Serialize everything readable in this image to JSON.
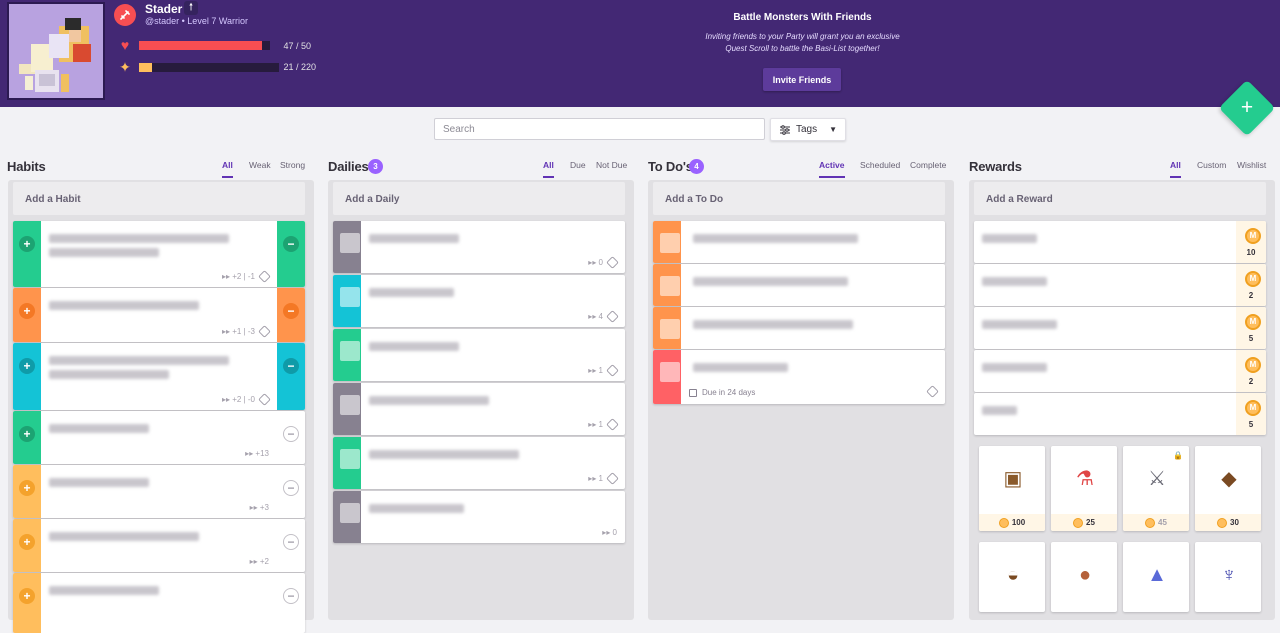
{
  "colors": {
    "header": "#432874",
    "accent": "#6133b4",
    "green": "#24cc8f",
    "health": "#f74e52",
    "experience": "#ffbe5d",
    "gold": "#ffbe5d"
  },
  "user": {
    "name": "Stader",
    "handle": "@stader • Level 7 Warrior",
    "health": {
      "current": 47,
      "max": 50,
      "text": "47 / 50",
      "fraction": 0.94
    },
    "experience": {
      "current": 21,
      "max": 220,
      "text": "21 / 220",
      "fraction": 0.095
    }
  },
  "party": {
    "title": "Battle Monsters With Friends",
    "line1": "Inviting friends to your Party will grant you an exclusive",
    "line2": "Quest Scroll to battle the Basi-List together!",
    "button": "Invite Friends"
  },
  "toolbar": {
    "search_placeholder": "Search",
    "tags_label": "Tags"
  },
  "columns": {
    "habits": {
      "title": "Habits",
      "filters": [
        "All",
        "Weak",
        "Strong"
      ],
      "add_label": "Add a Habit"
    },
    "dailies": {
      "title": "Dailies",
      "count": "3",
      "filters": [
        "All",
        "Due",
        "Not Due"
      ],
      "add_label": "Add a Daily"
    },
    "todos": {
      "title": "To Do's",
      "count": "4",
      "filters": [
        "Active",
        "Scheduled",
        "Complete"
      ],
      "add_label": "Add a To Do"
    },
    "rewards": {
      "title": "Rewards",
      "filters": [
        "All",
        "Custom",
        "Wishlist"
      ],
      "add_label": "Add a Reward"
    }
  },
  "habits": [
    {
      "color": "#24cc8f",
      "btn": "#1ca372",
      "minus": true,
      "meta": "+2 | -1"
    },
    {
      "color": "#ff944c",
      "btn": "#f47825",
      "minus": true,
      "meta": "+1 | -3"
    },
    {
      "color": "#14c3d6",
      "btn": "#0f9ba8",
      "minus": true,
      "meta": "+2 | -0"
    },
    {
      "color": "#24cc8f",
      "btn": "#1ca372",
      "minus": false,
      "meta": "+13"
    },
    {
      "color": "#ffbe5d",
      "btn": "#f4a22c",
      "minus": false,
      "meta": "+3"
    },
    {
      "color": "#ffbe5d",
      "btn": "#f4a22c",
      "minus": false,
      "meta": "+2"
    },
    {
      "color": "#ffbe5d",
      "btn": "#f4a22c",
      "minus": false,
      "meta": ""
    }
  ],
  "dailies": [
    {
      "color": "#878190",
      "meta": "0",
      "tag": true
    },
    {
      "color": "#14c3d6",
      "meta": "4",
      "tag": true
    },
    {
      "color": "#24cc8f",
      "meta": "1",
      "tag": true
    },
    {
      "color": "#878190",
      "meta": "1",
      "tag": true
    },
    {
      "color": "#24cc8f",
      "meta": "1",
      "tag": true
    },
    {
      "color": "#878190",
      "meta": "0",
      "tag": false
    }
  ],
  "todos": [
    {
      "color": "#ff944c"
    },
    {
      "color": "#ff944c"
    },
    {
      "color": "#ff944c"
    },
    {
      "color": "#ff6165",
      "due": "Due in 24 days"
    }
  ],
  "rewards": [
    {
      "price": "10"
    },
    {
      "price": "2"
    },
    {
      "price": "5"
    },
    {
      "price": "2"
    },
    {
      "price": "5"
    }
  ],
  "shop": [
    {
      "name": "chest-item-icon",
      "glyph": "▣",
      "glyph_color": "#8a5a2b",
      "price": "100",
      "locked": false
    },
    {
      "name": "potion-item-icon",
      "glyph": "⚗",
      "glyph_color": "#e04646",
      "price": "25",
      "locked": false
    },
    {
      "name": "sword-item-icon",
      "glyph": "⚔",
      "glyph_color": "#6b6b76",
      "price": "45",
      "locked": true
    },
    {
      "name": "helmet-item-icon",
      "glyph": "◆",
      "glyph_color": "#7a4a22",
      "price": "30",
      "locked": false
    },
    {
      "name": "hat-item-icon",
      "glyph": "◒",
      "glyph_color": "#7a4a22",
      "price": "",
      "locked": false
    },
    {
      "name": "orb-item-icon",
      "glyph": "●",
      "glyph_color": "#b5613a",
      "price": "",
      "locked": false
    },
    {
      "name": "wizard-hat-item-icon",
      "glyph": "▲",
      "glyph_color": "#5a6ad8",
      "price": "",
      "locked": false
    },
    {
      "name": "armor-item-icon",
      "glyph": "♆",
      "glyph_color": "#4a4fb0",
      "price": "",
      "locked": false
    }
  ]
}
